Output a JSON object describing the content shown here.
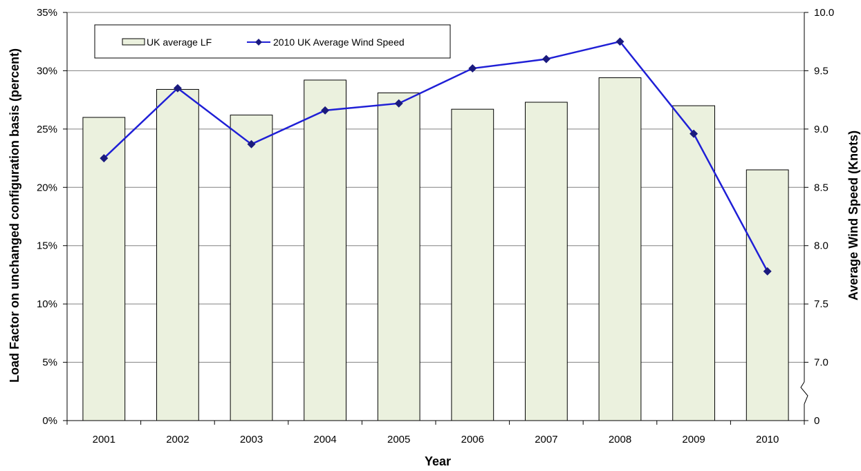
{
  "chart_data": {
    "type": "bar+line",
    "categories": [
      "2001",
      "2002",
      "2003",
      "2004",
      "2005",
      "2006",
      "2007",
      "2008",
      "2009",
      "2010"
    ],
    "series": [
      {
        "name": "UK average LF",
        "type": "bar",
        "axis": "left",
        "values": [
          26.0,
          28.4,
          26.2,
          29.2,
          28.1,
          26.7,
          27.3,
          29.4,
          27.0,
          21.5
        ]
      },
      {
        "name": "2010 UK Average Wind Speed",
        "type": "line",
        "axis": "right",
        "values": [
          8.75,
          9.35,
          8.87,
          9.16,
          9.22,
          9.52,
          9.6,
          9.75,
          8.96,
          7.78
        ]
      }
    ],
    "xlabel": "Year",
    "ylabel_left": "Load Factor on unchanged configuration basis (percent)",
    "ylabel_right": "Average Wind Speed (Knots)",
    "ylim_left": [
      0,
      35
    ],
    "ylim_right": [
      7.0,
      10.0
    ],
    "yticks_left": [
      "0%",
      "5%",
      "10%",
      "15%",
      "20%",
      "25%",
      "30%",
      "35%"
    ],
    "yticks_right": [
      "0",
      "7.0",
      "7.5",
      "8.0",
      "8.5",
      "9.0",
      "9.5",
      "10.0"
    ],
    "right_axis_break": true,
    "grid": "horizontal",
    "legend_position": "top-left",
    "colors": {
      "bar_fill": "#ebf1de",
      "bar_stroke": "#000000",
      "line": "#1f1fd6",
      "marker": "#1a1a7e",
      "grid": "#808080"
    }
  }
}
